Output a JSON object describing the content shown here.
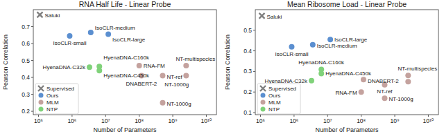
{
  "chart_data": [
    {
      "type": "scatter",
      "title": "RNA Half Life - Linear Probe",
      "x_label": "Number of Parameters",
      "y_label": "Pearson Correlation",
      "log": "x",
      "grid": false,
      "legend": "lower left",
      "xlim": [
        70000,
        20000000000
      ],
      "xticks": [
        {
          "value": 100000,
          "label": "10⁵"
        },
        {
          "value": 1000000,
          "label": "10⁶"
        },
        {
          "value": 10000000,
          "label": "10⁷"
        },
        {
          "value": 100000000,
          "label": "10⁸"
        },
        {
          "value": 1000000000,
          "label": "10⁹"
        },
        {
          "value": 10000000000,
          "label": "10¹⁰"
        }
      ],
      "ylim": [
        0.18,
        0.8
      ],
      "yticks": [
        0.2,
        0.3,
        0.4,
        0.5,
        0.6,
        0.7
      ],
      "series": [
        {
          "name": "Supervised",
          "color": "#7f7f7f",
          "marker": "x",
          "x": [
            110000
          ],
          "values": [
            0.77
          ],
          "point_labels": [
            "Saluki"
          ]
        },
        {
          "name": "Ours",
          "color": "#5b8fd0",
          "marker": "circle",
          "x": [
            850000,
            3600000,
            12000000
          ],
          "values": [
            0.645,
            0.665,
            0.655
          ],
          "point_labels": [
            "IsoCLR-small",
            "IsoCLR-medium",
            "IsoCLR-large"
          ]
        },
        {
          "name": "MLM",
          "color": "#c4a29e",
          "marker": "circle",
          "x": [
            100000000,
            117000000,
            2500000000,
            500000000,
            2500000000,
            500000000
          ],
          "values": [
            0.47,
            0.41,
            0.47,
            0.41,
            0.41,
            0.25
          ],
          "point_labels": [
            "RNA-FM",
            "DNABERT-2",
            "NT-multispecies",
            "NT-ref",
            "NT-1000g",
            "NT-1000g"
          ]
        },
        {
          "name": "NTP",
          "color": "#80d27a",
          "marker": "circle",
          "x": [
            3300000,
            6500000,
            6500000
          ],
          "values": [
            0.46,
            0.465,
            0.44
          ],
          "point_labels": [
            "HyenaDNA-C32k",
            "HyenaDNA-C160k",
            "HyenaDNA-C450k"
          ]
        }
      ]
    },
    {
      "type": "scatter",
      "title": "Mean Ribosome Load - Linear Probe",
      "x_label": "Number of Parameters",
      "y_label": "Pearson Correlation",
      "log": "x",
      "grid": false,
      "legend": "lower left",
      "xlim": [
        70000,
        20000000000
      ],
      "xticks": [
        {
          "value": 100000,
          "label": "10⁵"
        },
        {
          "value": 1000000,
          "label": "10⁶"
        },
        {
          "value": 10000000,
          "label": "10⁷"
        },
        {
          "value": 100000000,
          "label": "10⁸"
        },
        {
          "value": 1000000000,
          "label": "10⁹"
        },
        {
          "value": 10000000000,
          "label": "10¹⁰"
        }
      ],
      "ylim": [
        0.09,
        0.6
      ],
      "yticks": [
        0.1,
        0.2,
        0.3,
        0.4,
        0.5
      ],
      "series": [
        {
          "name": "Supervised",
          "color": "#7f7f7f",
          "marker": "x",
          "x": [
            110000
          ],
          "values": [
            0.57
          ],
          "point_labels": [
            "Saluki"
          ]
        },
        {
          "name": "Ours",
          "color": "#5b8fd0",
          "marker": "circle",
          "x": [
            850000,
            3600000,
            12000000
          ],
          "values": [
            0.42,
            0.43,
            0.455
          ],
          "point_labels": [
            "IsoCLR-small",
            "IsoCLR-medium",
            "IsoCLR-large"
          ]
        },
        {
          "name": "MLM",
          "color": "#c4a29e",
          "marker": "circle",
          "x": [
            100000000,
            117000000,
            2500000000,
            500000000,
            2500000000,
            500000000
          ],
          "values": [
            0.2,
            0.26,
            0.28,
            0.235,
            0.25,
            0.17
          ],
          "point_labels": [
            "RNA-FM",
            "DNABERT-2",
            "NT-multispecies",
            "NT-ref",
            null,
            "NT-1000g"
          ]
        },
        {
          "name": "NTP",
          "color": "#80d27a",
          "marker": "circle",
          "x": [
            3300000,
            6500000,
            6500000
          ],
          "values": [
            0.255,
            0.31,
            0.29
          ],
          "point_labels": [
            "HyenaDNA-C32k",
            "HyenaDNA-C160k",
            "HyenaDNA-C450k"
          ]
        }
      ]
    }
  ]
}
